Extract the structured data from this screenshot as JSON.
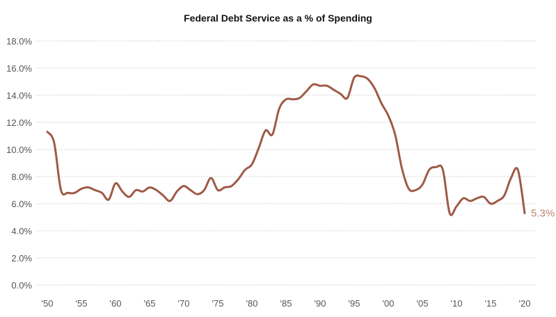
{
  "chart_data": {
    "type": "line",
    "title": "Federal Debt Service as a % of Spending",
    "xlabel": "",
    "ylabel": "",
    "ylim": [
      0,
      18
    ],
    "xlim": [
      1950,
      2020
    ],
    "grid": true,
    "y_ticks": [
      "0.0%",
      "2.0%",
      "4.0%",
      "6.0%",
      "8.0%",
      "10.0%",
      "12.0%",
      "14.0%",
      "16.0%",
      "18.0%"
    ],
    "x_ticks": [
      "'50",
      "'55",
      "'60",
      "'65",
      "'70",
      "'75",
      "'80",
      "'85",
      "'90",
      "'95",
      "'00",
      "'05",
      "'10",
      "'15",
      "'20"
    ],
    "end_label": "5.3%",
    "line_color": "#9e5a46",
    "label_color": "#b88672",
    "x": [
      1950,
      1951,
      1952,
      1953,
      1954,
      1955,
      1956,
      1957,
      1958,
      1959,
      1960,
      1961,
      1962,
      1963,
      1964,
      1965,
      1966,
      1967,
      1968,
      1969,
      1970,
      1971,
      1972,
      1973,
      1974,
      1975,
      1976,
      1977,
      1978,
      1979,
      1980,
      1981,
      1982,
      1983,
      1984,
      1985,
      1986,
      1987,
      1988,
      1989,
      1990,
      1991,
      1992,
      1993,
      1994,
      1995,
      1996,
      1997,
      1998,
      1999,
      2000,
      2001,
      2002,
      2003,
      2004,
      2005,
      2006,
      2007,
      2008,
      2009,
      2010,
      2011,
      2012,
      2013,
      2014,
      2015,
      2016,
      2017,
      2018,
      2019,
      2020
    ],
    "values": [
      11.3,
      10.5,
      7.0,
      6.8,
      6.8,
      7.1,
      7.2,
      7.0,
      6.8,
      6.3,
      7.5,
      6.9,
      6.5,
      7.0,
      6.9,
      7.2,
      7.0,
      6.6,
      6.2,
      6.9,
      7.3,
      7.0,
      6.7,
      7.0,
      7.9,
      7.0,
      7.2,
      7.3,
      7.8,
      8.5,
      8.9,
      10.1,
      11.4,
      11.1,
      13.0,
      13.7,
      13.7,
      13.8,
      14.3,
      14.8,
      14.7,
      14.7,
      14.4,
      14.1,
      13.8,
      15.3,
      15.4,
      15.2,
      14.5,
      13.4,
      12.5,
      11.1,
      8.6,
      7.1,
      7.0,
      7.4,
      8.5,
      8.7,
      8.5,
      5.3,
      5.8,
      6.4,
      6.2,
      6.4,
      6.5,
      6.0,
      6.2,
      6.6,
      7.9,
      8.5,
      5.3
    ]
  }
}
